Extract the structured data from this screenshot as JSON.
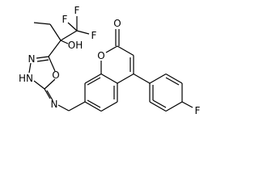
{
  "atoms": {
    "f1": "F",
    "f2": "F",
    "f3": "F",
    "hydroxyl": "OH",
    "ring_n": "N",
    "ring_nh": "HN",
    "ring_o": "O",
    "imine_n": "N",
    "carbonyl_o": "O",
    "lactone_o": "O",
    "aryl_f": "F"
  }
}
